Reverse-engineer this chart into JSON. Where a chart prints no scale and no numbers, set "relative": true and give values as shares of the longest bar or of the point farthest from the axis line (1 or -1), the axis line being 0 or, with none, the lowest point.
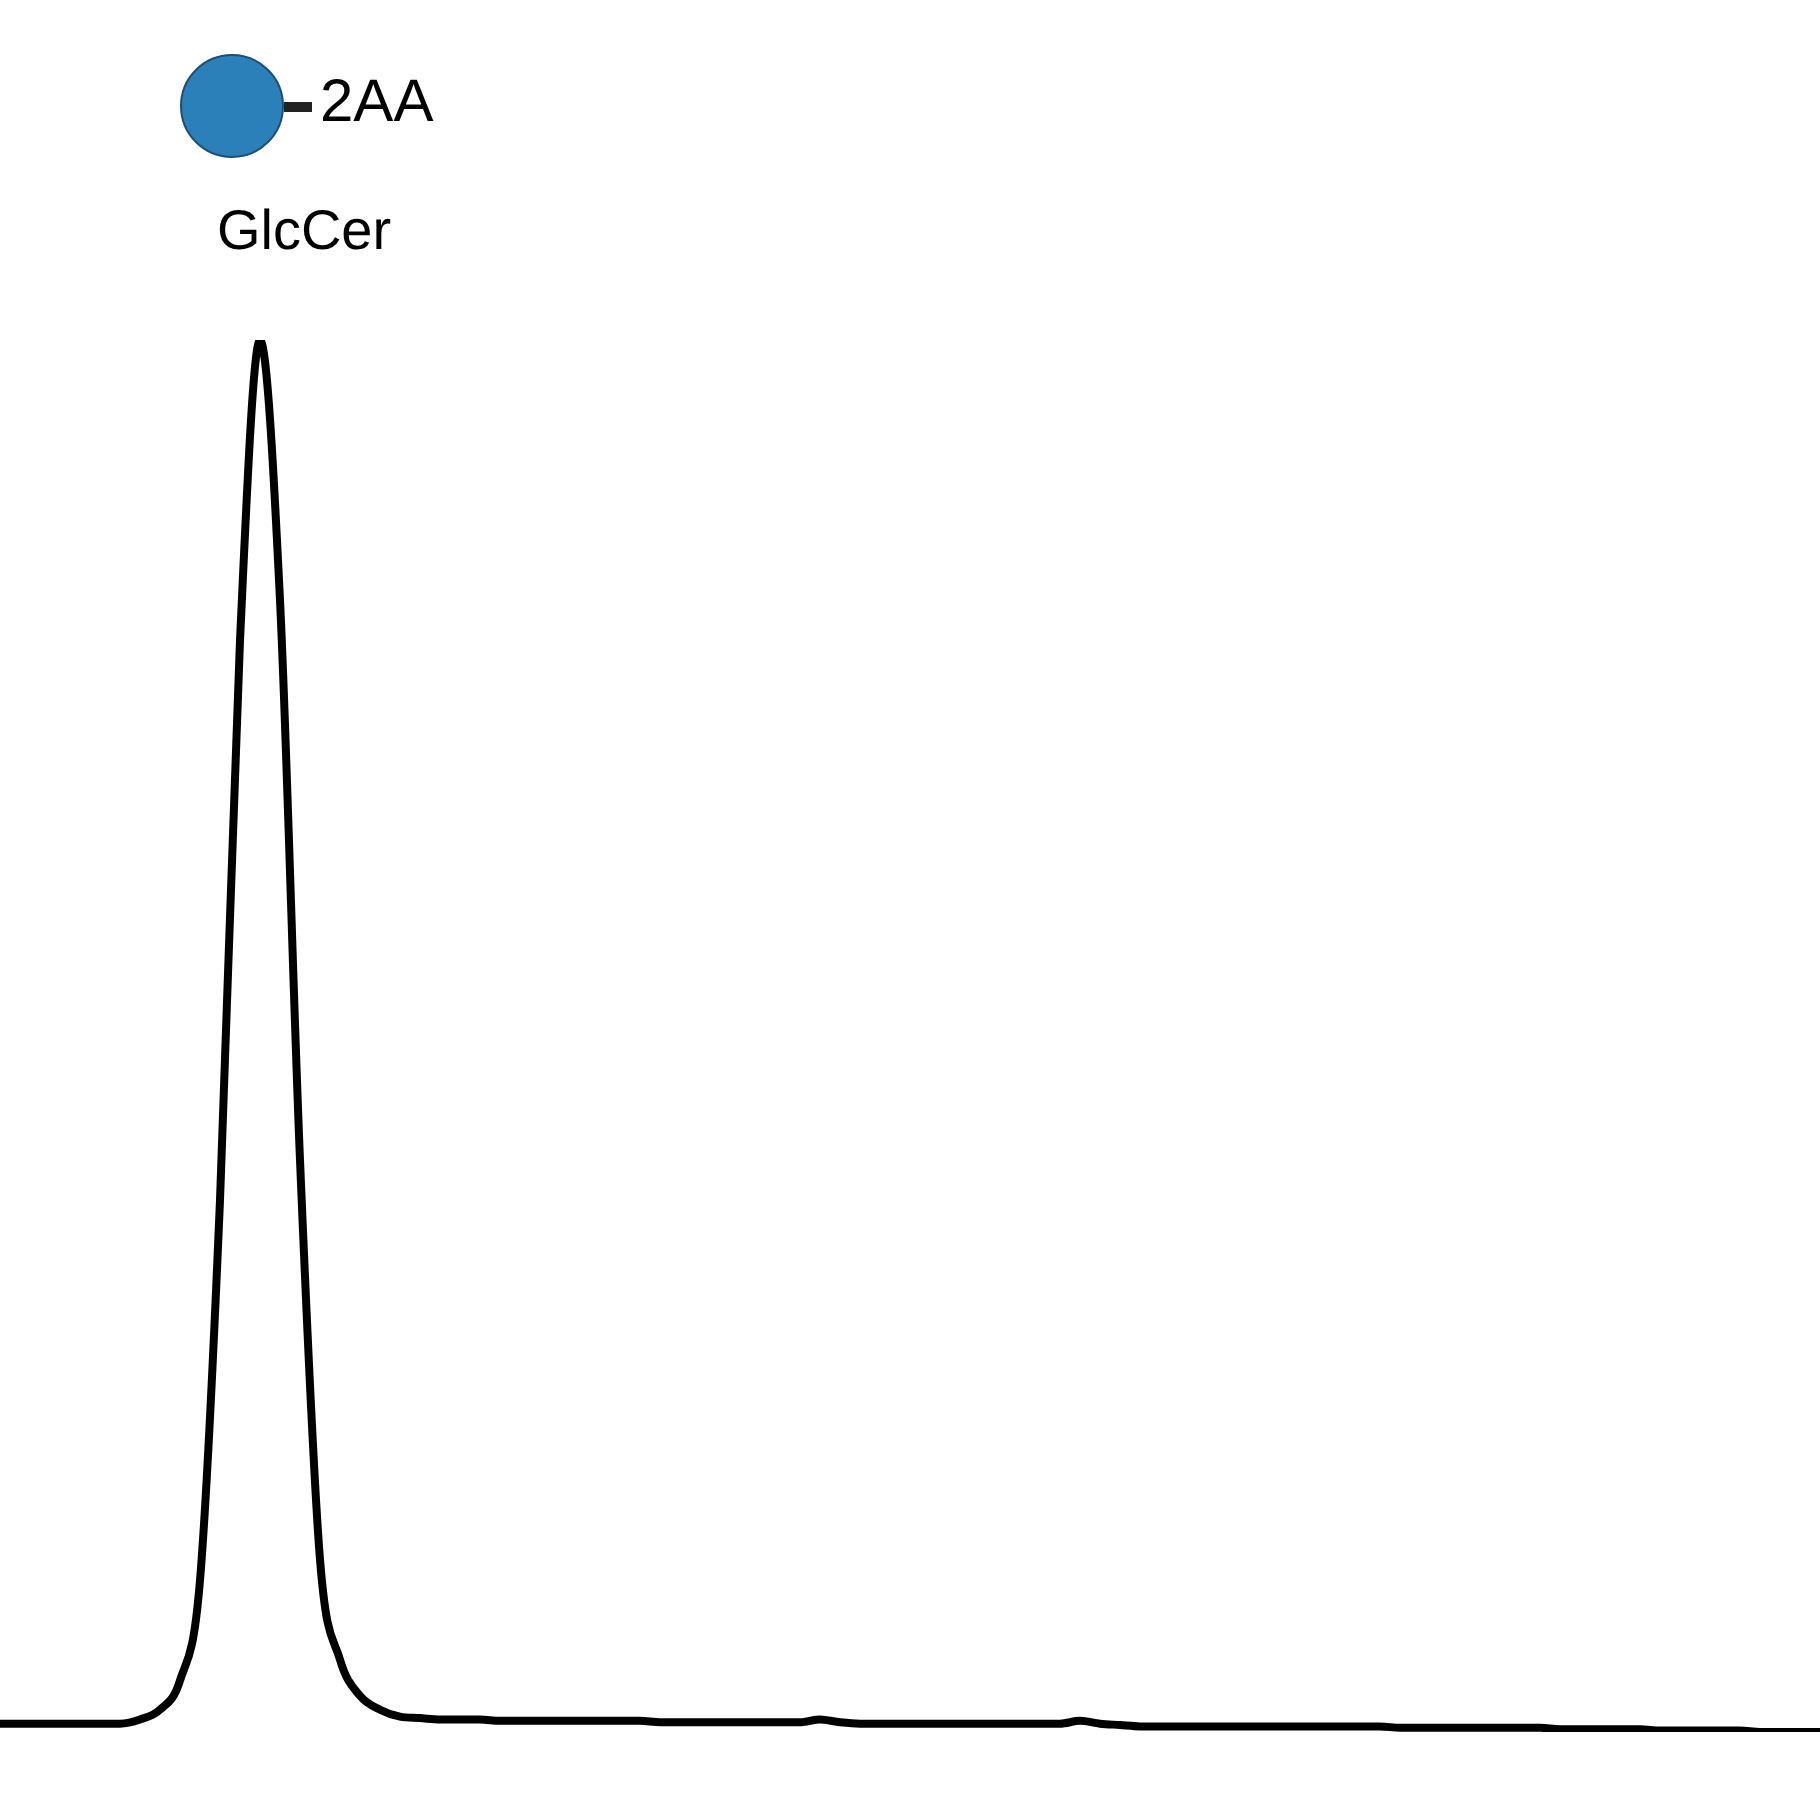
{
  "chart_data": {
    "type": "line",
    "relative": true,
    "color": "#000000",
    "marker": "none",
    "legend": false,
    "annotations": [
      "2AA",
      "GlcCer"
    ],
    "categories": [
      null,
      null,
      null,
      null,
      null,
      null,
      null,
      null,
      null,
      null,
      null,
      null,
      null,
      null,
      null,
      null,
      null,
      null,
      null,
      null,
      null,
      null,
      null,
      null,
      null,
      null,
      null,
      null,
      null,
      null,
      null,
      null,
      null,
      null,
      null,
      null,
      null,
      null,
      null,
      null,
      null,
      null,
      null,
      null,
      null,
      null,
      null,
      null,
      null,
      null,
      null,
      null,
      null,
      null,
      null,
      null,
      null,
      null,
      null,
      null,
      null,
      null,
      null,
      null,
      null,
      null,
      null,
      null,
      null,
      null,
      null,
      null,
      null,
      null,
      null,
      null,
      null,
      null,
      null,
      null,
      null,
      null,
      null,
      null,
      null,
      null,
      null,
      null,
      null,
      null,
      null,
      null
    ],
    "values": [
      0.006,
      0.006,
      0.006,
      0.006,
      0.006,
      0.006,
      0.006,
      0.009,
      0.016,
      0.037,
      0.109,
      0.382,
      0.784,
      1,
      0.813,
      0.411,
      0.124,
      0.052,
      0.026,
      0.016,
      0.011,
      0.01,
      0.009,
      0.009,
      0.009,
      0.008,
      0.008,
      0.008,
      0.008,
      0.008,
      0.008,
      0.008,
      0.008,
      0.007,
      0.007,
      0.007,
      0.007,
      0.007,
      0.007,
      0.007,
      0.007,
      0.009,
      0.007,
      0.006,
      0.006,
      0.006,
      0.006,
      0.006,
      0.006,
      0.006,
      0.006,
      0.006,
      0.006,
      0.006,
      0.008,
      0.006,
      0.005,
      0.004,
      0.004,
      0.004,
      0.004,
      0.004,
      0.004,
      0.004,
      0.004,
      0.004,
      0.004,
      0.004,
      0.004,
      0.004,
      0.003,
      0.003,
      0.003,
      0.003,
      0.003,
      0.003,
      0.003,
      0.003,
      0.002,
      0.002,
      0.002,
      0.002,
      0.002,
      0.001,
      0.001,
      0.001,
      0.001,
      0.001,
      0,
      0,
      0,
      0
    ]
  }
}
